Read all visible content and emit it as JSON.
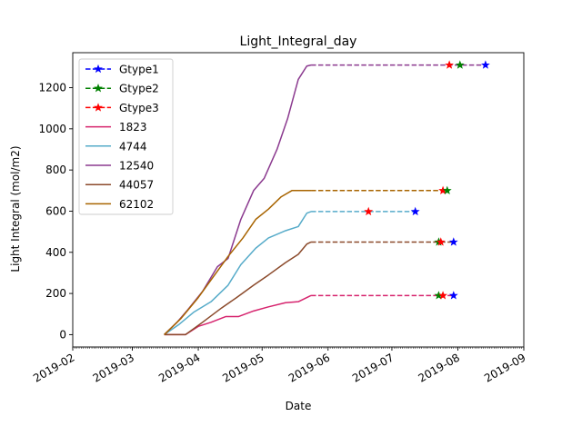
{
  "chart_data": {
    "type": "line",
    "title": "Light_Integral_day",
    "xlabel": "Date",
    "ylabel": "Light Integral (mol/m2)",
    "xlim": [
      "2019-02-01",
      "2019-09-01"
    ],
    "ylim": [
      -60,
      1370
    ],
    "x_ticks": [
      "2019-02-01",
      "2019-03-01",
      "2019-04-01",
      "2019-05-01",
      "2019-06-01",
      "2019-07-01",
      "2019-08-01",
      "2019-09-01"
    ],
    "x_tick_labels": [
      "2019-02",
      "2019-03",
      "2019-04",
      "2019-05",
      "2019-06",
      "2019-07",
      "2019-08",
      "2019-09"
    ],
    "y_ticks": [
      0,
      200,
      400,
      600,
      800,
      1000,
      1200
    ],
    "y_tick_labels": [
      "0",
      "200",
      "400",
      "600",
      "800",
      "1000",
      "1200"
    ],
    "grid": false,
    "legend_position": "top-left",
    "legend": [
      "Gtype1",
      "Gtype2",
      "Gtype3",
      "1823",
      "4744",
      "12540",
      "44057",
      "62102"
    ],
    "series": [
      {
        "name": "1823",
        "color": "#d6246e",
        "x": [
          "2019-03-16",
          "2019-03-20",
          "2019-03-26",
          "2019-04-01",
          "2019-04-07",
          "2019-04-14",
          "2019-04-20",
          "2019-04-27",
          "2019-05-04",
          "2019-05-12",
          "2019-05-18",
          "2019-05-24"
        ],
        "y": [
          0,
          0,
          0,
          40,
          60,
          88,
          88,
          115,
          135,
          155,
          160,
          190
        ],
        "projection": {
          "x": [
            "2019-05-24",
            "2019-07-30"
          ],
          "y": [
            190,
            190
          ],
          "style": "dashed"
        },
        "markers": [
          {
            "type": "Gtype2",
            "x": "2019-07-23",
            "y": 190
          },
          {
            "type": "Gtype3",
            "x": "2019-07-25",
            "y": 190
          },
          {
            "type": "Gtype1",
            "x": "2019-07-30",
            "y": 190
          }
        ]
      },
      {
        "name": "4744",
        "color": "#56abc9",
        "x": [
          "2019-03-16",
          "2019-03-23",
          "2019-03-30",
          "2019-04-07",
          "2019-04-15",
          "2019-04-21",
          "2019-04-28",
          "2019-05-04",
          "2019-05-12",
          "2019-05-18",
          "2019-05-22",
          "2019-05-24"
        ],
        "y": [
          0,
          50,
          110,
          160,
          240,
          340,
          420,
          470,
          505,
          525,
          590,
          598
        ],
        "projection": {
          "x": [
            "2019-05-24",
            "2019-07-12"
          ],
          "y": [
            598,
            598
          ],
          "style": "dashed"
        },
        "markers": [
          {
            "type": "Gtype3",
            "x": "2019-06-20",
            "y": 598
          },
          {
            "type": "Gtype1",
            "x": "2019-07-12",
            "y": 598
          }
        ]
      },
      {
        "name": "12540",
        "color": "#8b3a8f",
        "x": [
          "2019-03-16",
          "2019-03-22",
          "2019-03-27",
          "2019-04-03",
          "2019-04-10",
          "2019-04-15",
          "2019-04-21",
          "2019-04-27",
          "2019-05-02",
          "2019-05-08",
          "2019-05-13",
          "2019-05-18",
          "2019-05-22",
          "2019-05-24"
        ],
        "y": [
          0,
          60,
          120,
          210,
          330,
          370,
          560,
          700,
          760,
          900,
          1050,
          1240,
          1305,
          1310
        ],
        "projection": {
          "x": [
            "2019-05-24",
            "2019-08-14"
          ],
          "y": [
            1310,
            1310
          ],
          "style": "dashed"
        },
        "markers": [
          {
            "type": "Gtype3",
            "x": "2019-07-28",
            "y": 1310
          },
          {
            "type": "Gtype2",
            "x": "2019-08-02",
            "y": 1310
          },
          {
            "type": "Gtype1",
            "x": "2019-08-14",
            "y": 1310
          }
        ]
      },
      {
        "name": "44057",
        "color": "#8b4a2b",
        "x": [
          "2019-03-16",
          "2019-03-26",
          "2019-04-03",
          "2019-04-12",
          "2019-04-19",
          "2019-04-27",
          "2019-05-04",
          "2019-05-12",
          "2019-05-18",
          "2019-05-22",
          "2019-05-24"
        ],
        "y": [
          0,
          0,
          60,
          130,
          180,
          240,
          290,
          350,
          390,
          440,
          450
        ],
        "projection": {
          "x": [
            "2019-05-24",
            "2019-07-30"
          ],
          "y": [
            450,
            450
          ],
          "style": "dashed"
        },
        "markers": [
          {
            "type": "Gtype2",
            "x": "2019-07-23",
            "y": 450
          },
          {
            "type": "Gtype3",
            "x": "2019-07-24",
            "y": 450
          },
          {
            "type": "Gtype1",
            "x": "2019-07-30",
            "y": 450
          }
        ]
      },
      {
        "name": "62102",
        "color": "#a86400",
        "x": [
          "2019-03-16",
          "2019-03-24",
          "2019-04-01",
          "2019-04-08",
          "2019-04-15",
          "2019-04-22",
          "2019-04-28",
          "2019-05-04",
          "2019-05-10",
          "2019-05-15",
          "2019-05-24"
        ],
        "y": [
          0,
          80,
          180,
          280,
          380,
          470,
          560,
          610,
          670,
          700,
          700
        ],
        "projection": {
          "x": [
            "2019-05-24",
            "2019-07-27"
          ],
          "y": [
            700,
            700
          ],
          "style": "dashed"
        },
        "markers": [
          {
            "type": "Gtype3",
            "x": "2019-07-25",
            "y": 700
          },
          {
            "type": "Gtype2",
            "x": "2019-07-27",
            "y": 700
          }
        ]
      }
    ],
    "marker_styles": {
      "Gtype1": {
        "color": "#0000ff"
      },
      "Gtype2": {
        "color": "#008000"
      },
      "Gtype3": {
        "color": "#ff0000"
      }
    }
  }
}
